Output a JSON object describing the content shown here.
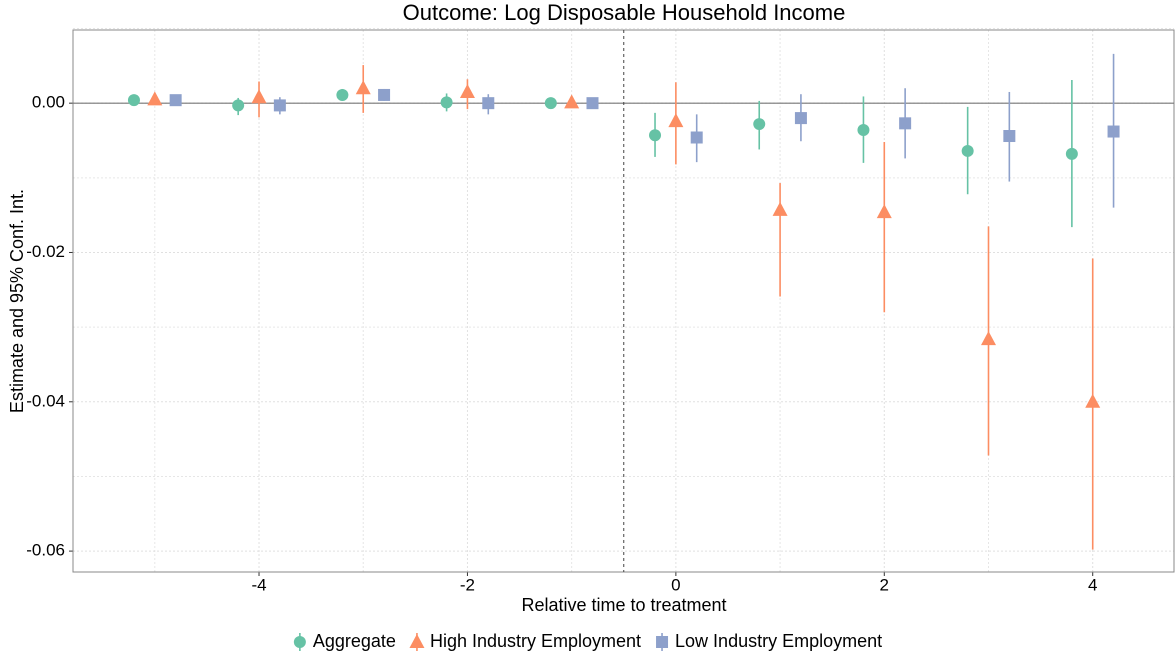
{
  "chart_data": {
    "type": "errorbar",
    "title": "Outcome: Log Disposable Household Income",
    "x_label": "Relative time to treatment",
    "y_label": "Estimate and 95% Conf. Int.",
    "xlim": [
      -5.785,
      4.78
    ],
    "ylim": [
      -0.0628,
      0.0098
    ],
    "xticks": [
      -4,
      -2,
      0,
      2,
      4
    ],
    "yticks": [
      {
        "value": 0,
        "label": "0.00"
      },
      {
        "value": -0.02,
        "label": "-0.02"
      },
      {
        "value": -0.04,
        "label": "-0.04"
      },
      {
        "value": -0.06,
        "label": "-0.06"
      }
    ],
    "minor_xticks": [
      -5,
      -3,
      -1,
      1,
      3
    ],
    "minor_yticks": [
      0.01,
      -0.01,
      -0.03,
      -0.05
    ],
    "grid": true,
    "hline": 0,
    "vline": -0.5,
    "legend": "bottom",
    "series": [
      {
        "name": "Aggregate",
        "color": "#66c2a5",
        "marker": "circle",
        "x": [
          -5.2,
          -4.2,
          -3.2,
          -2.2,
          -1.2,
          -0.2,
          0.8,
          1.8,
          2.8,
          3.8
        ],
        "values": [
          0.0004,
          -0.0003,
          0.0011,
          0.0001,
          0,
          -0.0043,
          -0.0028,
          -0.0036,
          -0.0064,
          -0.0068
        ],
        "ci_low": [
          0.0003,
          -0.0016,
          0.0003,
          -0.0011,
          0,
          -0.0072,
          -0.0062,
          -0.008,
          -0.0122,
          -0.0166
        ],
        "ci_high": [
          0.0005,
          0.0007,
          0.0019,
          0.0013,
          0,
          -0.0013,
          0.0003,
          0.0009,
          -0.0005,
          0.0031
        ]
      },
      {
        "name": "High Industry Employment",
        "color": "#fc8d62",
        "marker": "triangle",
        "x": [
          -5,
          -4,
          -3,
          -2,
          -1,
          0,
          1,
          2,
          3,
          4
        ],
        "values": [
          0.0005,
          0.0008,
          0.002,
          0.0015,
          0.0001,
          -0.0024,
          -0.0143,
          -0.0146,
          -0.0316,
          -0.04
        ],
        "ci_low": [
          0.0003,
          -0.0019,
          -0.0013,
          -0.0008,
          0,
          -0.0082,
          -0.0259,
          -0.028,
          -0.0472,
          -0.0598
        ],
        "ci_high": [
          0.0008,
          0.0029,
          0.0051,
          0.0032,
          0.0002,
          0.0028,
          -0.0107,
          -0.0052,
          -0.0165,
          -0.0208
        ]
      },
      {
        "name": "Low Industry Employment",
        "color": "#8da0cb",
        "marker": "square",
        "x": [
          -4.8,
          -3.8,
          -2.8,
          -1.8,
          -0.8,
          0.2,
          1.2,
          2.2,
          3.2,
          4.2
        ],
        "values": [
          0.0004,
          -0.0003,
          0.0011,
          0,
          0,
          -0.0046,
          -0.002,
          -0.0027,
          -0.0044,
          -0.0038
        ],
        "ci_low": [
          0.0003,
          -0.0015,
          0.0003,
          -0.0015,
          0,
          -0.0079,
          -0.0051,
          -0.0074,
          -0.0105,
          -0.014
        ],
        "ci_high": [
          0.0005,
          0.0008,
          0.0019,
          0.0012,
          0,
          -0.0015,
          0.0012,
          0.002,
          0.0015,
          0.0066
        ]
      }
    ]
  }
}
